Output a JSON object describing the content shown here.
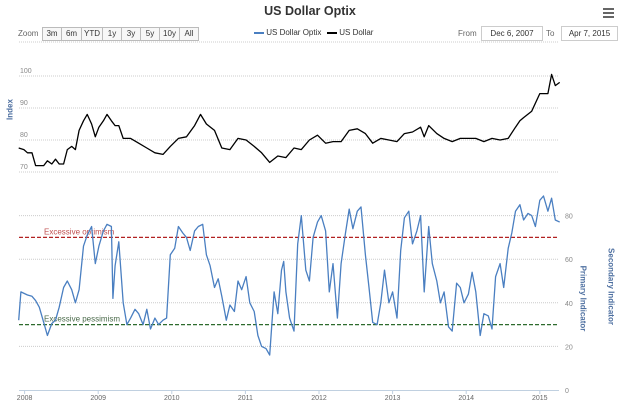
{
  "title": "US Dollar Optix",
  "menu_icon": "hamburger-menu-icon",
  "range_selector": {
    "label": "Zoom",
    "buttons": [
      "3m",
      "6m",
      "YTD",
      "1y",
      "3y",
      "5y",
      "10y",
      "All"
    ],
    "from_label": "From",
    "from_value": "Dec 6, 2007",
    "to_label": "To",
    "to_value": "Apr 7, 2015"
  },
  "chart_data": {
    "type": "line",
    "title": "US Dollar Optix",
    "legend": {
      "placement": "top-center",
      "entries": [
        "US Dollar Optix",
        "US Dollar"
      ]
    },
    "x_ticks": [
      "2008",
      "2009",
      "2010",
      "2011",
      "2012",
      "2013",
      "2014",
      "2015"
    ],
    "xlim": [
      "Dec 6, 2007",
      "Apr 7, 2015"
    ],
    "grid": true,
    "panels": [
      {
        "ylabel": "Index",
        "ylim": [
          70,
          100
        ],
        "y_ticks": [
          "70",
          "80",
          "90",
          "100"
        ],
        "series": [
          {
            "name": "US Dollar",
            "color": "#000000",
            "points": [
              [
                2007.92,
                77.5
              ],
              [
                2007.99,
                77
              ],
              [
                2008.04,
                76
              ],
              [
                2008.1,
                76
              ],
              [
                2008.15,
                72
              ],
              [
                2008.2,
                72
              ],
              [
                2008.26,
                72
              ],
              [
                2008.31,
                73.5
              ],
              [
                2008.37,
                72.5
              ],
              [
                2008.42,
                74
              ],
              [
                2008.47,
                72.5
              ],
              [
                2008.53,
                72.5
              ],
              [
                2008.58,
                77
              ],
              [
                2008.64,
                78
              ],
              [
                2008.69,
                77
              ],
              [
                2008.74,
                83
              ],
              [
                2008.8,
                86
              ],
              [
                2008.85,
                88
              ],
              [
                2008.91,
                85
              ],
              [
                2008.96,
                81
              ],
              [
                2009.01,
                84
              ],
              [
                2009.07,
                86
              ],
              [
                2009.12,
                88
              ],
              [
                2009.18,
                86
              ],
              [
                2009.23,
                84.5
              ],
              [
                2009.28,
                84.5
              ],
              [
                2009.34,
                80.5
              ],
              [
                2009.44,
                80.5
              ],
              [
                2009.55,
                79
              ],
              [
                2009.66,
                77.5
              ],
              [
                2009.77,
                76
              ],
              [
                2009.88,
                75.5
              ],
              [
                2009.98,
                78
              ],
              [
                2010.09,
                80.5
              ],
              [
                2010.2,
                81
              ],
              [
                2010.31,
                84.5
              ],
              [
                2010.39,
                88
              ],
              [
                2010.47,
                85
              ],
              [
                2010.58,
                83
              ],
              [
                2010.68,
                77.5
              ],
              [
                2010.79,
                77
              ],
              [
                2010.9,
                80.5
              ],
              [
                2011.01,
                80
              ],
              [
                2011.12,
                78
              ],
              [
                2011.22,
                76
              ],
              [
                2011.33,
                73
              ],
              [
                2011.44,
                75
              ],
              [
                2011.55,
                74.5
              ],
              [
                2011.66,
                77.5
              ],
              [
                2011.76,
                77
              ],
              [
                2011.87,
                80
              ],
              [
                2011.98,
                81.5
              ],
              [
                2012.09,
                79
              ],
              [
                2012.19,
                79.5
              ],
              [
                2012.3,
                79.5
              ],
              [
                2012.41,
                83
              ],
              [
                2012.52,
                83.5
              ],
              [
                2012.63,
                82
              ],
              [
                2012.73,
                79
              ],
              [
                2012.84,
                80.5
              ],
              [
                2012.95,
                80
              ],
              [
                2013.06,
                79.5
              ],
              [
                2013.16,
                82
              ],
              [
                2013.27,
                82.5
              ],
              [
                2013.38,
                84
              ],
              [
                2013.43,
                81
              ],
              [
                2013.49,
                84.5
              ],
              [
                2013.6,
                82
              ],
              [
                2013.7,
                80.5
              ],
              [
                2013.81,
                79.5
              ],
              [
                2013.92,
                80.5
              ],
              [
                2014.03,
                80.5
              ],
              [
                2014.13,
                80.5
              ],
              [
                2014.24,
                79.5
              ],
              [
                2014.35,
                80.5
              ],
              [
                2014.46,
                80
              ],
              [
                2014.57,
                80.5
              ],
              [
                2014.67,
                84
              ],
              [
                2014.73,
                86
              ],
              [
                2014.78,
                87
              ],
              [
                2014.89,
                89
              ],
              [
                2015.0,
                94.5
              ],
              [
                2015.11,
                94.5
              ],
              [
                2015.16,
                100.5
              ],
              [
                2015.21,
                97
              ],
              [
                2015.27,
                98
              ]
            ]
          }
        ]
      },
      {
        "ylabel": "Primary Indicator",
        "ylabel_secondary": "Secondary Indicator",
        "ylim": [
          0,
          90
        ],
        "y_ticks": [
          "0",
          "20",
          "40",
          "60",
          "80"
        ],
        "plot_lines": [
          {
            "label": "Excessive optimism",
            "value": 70,
            "color": "#b22222"
          },
          {
            "label": "Excessive pessimism",
            "value": 30,
            "color": "#2e6b2e"
          }
        ],
        "series": [
          {
            "name": "US Dollar Optix",
            "color": "#4a7fc1",
            "points": [
              [
                2007.92,
                32
              ],
              [
                2007.95,
                45
              ],
              [
                2008.04,
                43.6
              ],
              [
                2008.1,
                43
              ],
              [
                2008.15,
                41
              ],
              [
                2008.2,
                38
              ],
              [
                2008.26,
                31
              ],
              [
                2008.31,
                25
              ],
              [
                2008.37,
                30.5
              ],
              [
                2008.42,
                32
              ],
              [
                2008.47,
                38
              ],
              [
                2008.53,
                47
              ],
              [
                2008.58,
                50
              ],
              [
                2008.64,
                46
              ],
              [
                2008.69,
                40
              ],
              [
                2008.74,
                46
              ],
              [
                2008.8,
                66
              ],
              [
                2008.85,
                71
              ],
              [
                2008.91,
                75
              ],
              [
                2008.96,
                58
              ],
              [
                2009.01,
                66
              ],
              [
                2009.07,
                73
              ],
              [
                2009.12,
                76
              ],
              [
                2009.18,
                75
              ],
              [
                2009.2,
                42
              ],
              [
                2009.23,
                57
              ],
              [
                2009.28,
                68
              ],
              [
                2009.34,
                40
              ],
              [
                2009.39,
                30
              ],
              [
                2009.44,
                33
              ],
              [
                2009.5,
                37
              ],
              [
                2009.55,
                35
              ],
              [
                2009.61,
                30
              ],
              [
                2009.66,
                37
              ],
              [
                2009.71,
                28
              ],
              [
                2009.77,
                33
              ],
              [
                2009.82,
                30
              ],
              [
                2009.88,
                32
              ],
              [
                2009.93,
                33
              ],
              [
                2009.98,
                62
              ],
              [
                2010.04,
                65
              ],
              [
                2010.09,
                75
              ],
              [
                2010.15,
                72
              ],
              [
                2010.2,
                70
              ],
              [
                2010.25,
                64
              ],
              [
                2010.31,
                73
              ],
              [
                2010.36,
                75
              ],
              [
                2010.42,
                76
              ],
              [
                2010.47,
                62
              ],
              [
                2010.52,
                57
              ],
              [
                2010.58,
                47
              ],
              [
                2010.63,
                51
              ],
              [
                2010.68,
                43
              ],
              [
                2010.74,
                32
              ],
              [
                2010.79,
                39
              ],
              [
                2010.85,
                36
              ],
              [
                2010.9,
                50
              ],
              [
                2010.95,
                46
              ],
              [
                2011.01,
                52
              ],
              [
                2011.06,
                40
              ],
              [
                2011.12,
                36
              ],
              [
                2011.17,
                25
              ],
              [
                2011.22,
                20
              ],
              [
                2011.28,
                19
              ],
              [
                2011.33,
                16
              ],
              [
                2011.39,
                45
              ],
              [
                2011.44,
                35
              ],
              [
                2011.49,
                55
              ],
              [
                2011.52,
                59
              ],
              [
                2011.55,
                45
              ],
              [
                2011.6,
                33
              ],
              [
                2011.66,
                27
              ],
              [
                2011.71,
                67
              ],
              [
                2011.76,
                80
              ],
              [
                2011.82,
                55
              ],
              [
                2011.87,
                50
              ],
              [
                2011.92,
                70
              ],
              [
                2011.98,
                77
              ],
              [
                2012.03,
                80
              ],
              [
                2012.09,
                73
              ],
              [
                2012.14,
                45
              ],
              [
                2012.19,
                58
              ],
              [
                2012.25,
                33
              ],
              [
                2012.3,
                58
              ],
              [
                2012.36,
                72
              ],
              [
                2012.41,
                83
              ],
              [
                2012.46,
                74
              ],
              [
                2012.52,
                82
              ],
              [
                2012.57,
                84
              ],
              [
                2012.63,
                62
              ],
              [
                2012.68,
                47
              ],
              [
                2012.73,
                31
              ],
              [
                2012.79,
                30
              ],
              [
                2012.84,
                40
              ],
              [
                2012.89,
                55
              ],
              [
                2012.95,
                40
              ],
              [
                2013.0,
                45
              ],
              [
                2013.06,
                33
              ],
              [
                2013.11,
                64
              ],
              [
                2013.16,
                79
              ],
              [
                2013.22,
                82
              ],
              [
                2013.27,
                67
              ],
              [
                2013.33,
                73
              ],
              [
                2013.38,
                80
              ],
              [
                2013.43,
                45
              ],
              [
                2013.49,
                75
              ],
              [
                2013.54,
                58
              ],
              [
                2013.6,
                50
              ],
              [
                2013.65,
                40
              ],
              [
                2013.7,
                45
              ],
              [
                2013.76,
                29
              ],
              [
                2013.81,
                27
              ],
              [
                2013.87,
                49
              ],
              [
                2013.92,
                47
              ],
              [
                2013.97,
                40
              ],
              [
                2014.03,
                44
              ],
              [
                2014.08,
                54
              ],
              [
                2014.13,
                45
              ],
              [
                2014.19,
                25
              ],
              [
                2014.24,
                35
              ],
              [
                2014.3,
                34
              ],
              [
                2014.35,
                28
              ],
              [
                2014.4,
                52
              ],
              [
                2014.46,
                58
              ],
              [
                2014.51,
                47
              ],
              [
                2014.57,
                65
              ],
              [
                2014.62,
                72
              ],
              [
                2014.67,
                82
              ],
              [
                2014.73,
                85
              ],
              [
                2014.78,
                78
              ],
              [
                2014.84,
                81
              ],
              [
                2014.89,
                80
              ],
              [
                2014.94,
                75
              ],
              [
                2015.0,
                87
              ],
              [
                2015.05,
                89
              ],
              [
                2015.11,
                82
              ],
              [
                2015.16,
                88
              ],
              [
                2015.21,
                78
              ],
              [
                2015.27,
                77
              ]
            ]
          }
        ]
      }
    ]
  }
}
